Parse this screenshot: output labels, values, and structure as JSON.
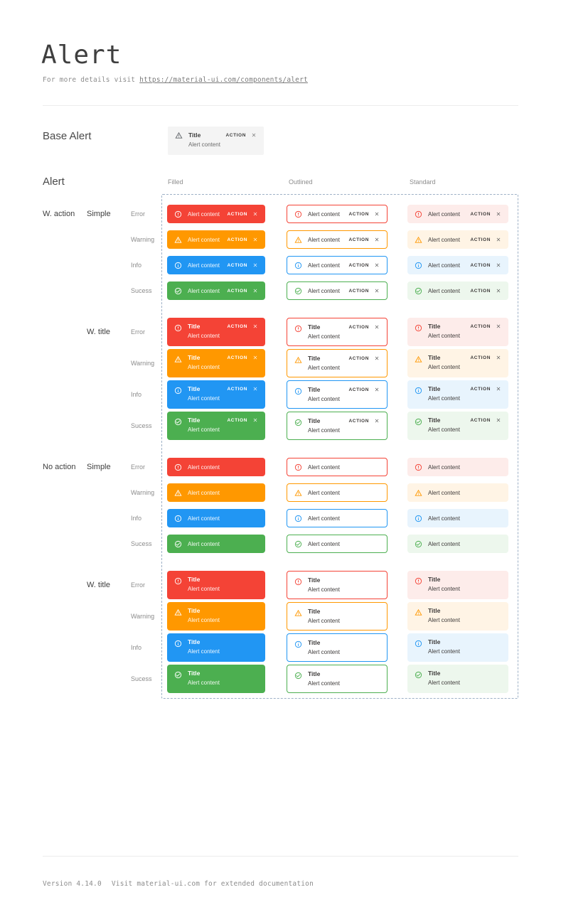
{
  "page": {
    "title": "Alert",
    "subtitle_prefix": "For more details visit ",
    "subtitle_link": "https://material-ui.com/components/alert"
  },
  "base_alert": {
    "section_label": "Base Alert",
    "title": "Title",
    "content": "Alert content",
    "action_label": "ACTION",
    "icon": "warning-triangle-icon",
    "close_icon": "close-icon",
    "background": "#f4f4f4"
  },
  "alert_section": {
    "heading": "Alert",
    "columns": [
      {
        "label": "Filled",
        "key": "filled"
      },
      {
        "label": "Outlined",
        "key": "outlined"
      },
      {
        "label": "Standard",
        "key": "standard"
      }
    ],
    "severity_rows": [
      {
        "label": "Error",
        "key": "error",
        "icon": "error-outline-icon"
      },
      {
        "label": "Warning",
        "key": "warning",
        "icon": "warning-triangle-icon"
      },
      {
        "label": "Info",
        "key": "info",
        "icon": "info-outline-icon"
      },
      {
        "label": "Sucess",
        "key": "success",
        "icon": "check-circle-outline-icon"
      }
    ],
    "groups": [
      {
        "label": "W. action",
        "has_action": true,
        "subgroups": [
          {
            "label": "Simple",
            "has_title": false
          },
          {
            "label": "W. title",
            "has_title": true
          }
        ]
      },
      {
        "label": "No action",
        "has_action": false,
        "subgroups": [
          {
            "label": "Simple",
            "has_title": false
          },
          {
            "label": "W. title",
            "has_title": true
          }
        ]
      }
    ],
    "text": {
      "title": "Title",
      "content": "Alert content",
      "action": "ACTION"
    }
  },
  "colors": {
    "error": {
      "main": "#f44336",
      "standard_bg": "#fdecea"
    },
    "warning": {
      "main": "#ff9800",
      "standard_bg": "#fff4e5"
    },
    "info": {
      "main": "#2196f3",
      "standard_bg": "#e8f4fd"
    },
    "success": {
      "main": "#4caf50",
      "standard_bg": "#edf7ed"
    },
    "dashed_border": "#9db0c6",
    "filled_text": "#ffffff",
    "plain_text": "#3d3a39"
  },
  "footer": {
    "version": "Version 4.14.0",
    "note": "Visit material-ui.com for extended documentation"
  }
}
